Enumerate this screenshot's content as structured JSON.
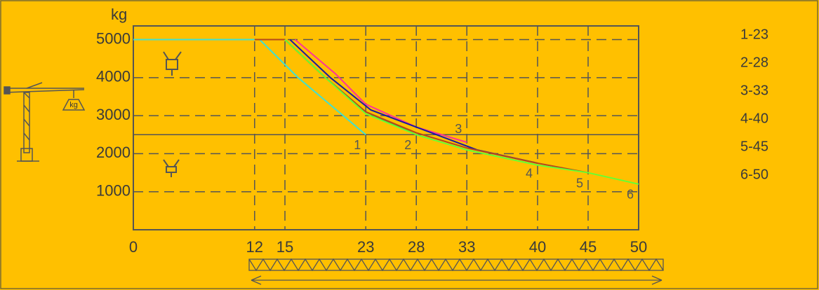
{
  "chart_data": {
    "type": "line",
    "y_label": "kg",
    "icon_text": "kg",
    "xlim": [
      0,
      50
    ],
    "xticks": [
      0,
      12,
      15,
      23,
      28,
      33,
      40,
      45,
      50
    ],
    "ylim": [
      0,
      5360
    ],
    "yticks": [
      1000,
      2000,
      3000,
      4000,
      5000
    ],
    "grid": true,
    "reference_line": 2500,
    "series": [
      {
        "name": "1-23",
        "label": "1",
        "color": "#40e0d0",
        "x": [
          0,
          12.5,
          16.3,
          23
        ],
        "values": [
          5000,
          5000,
          4000,
          2500
        ]
      },
      {
        "name": "2-28",
        "label": "2",
        "color": "#6b8e23",
        "x": [
          15,
          19,
          23,
          28
        ],
        "values": [
          5000,
          4000,
          3100,
          2500
        ]
      },
      {
        "name": "3-33",
        "label": "3",
        "color": "#ff3399",
        "x": [
          16,
          20,
          23,
          28,
          33
        ],
        "values": [
          5000,
          4100,
          3300,
          2700,
          2300
        ]
      },
      {
        "name": "4-40",
        "label": "4",
        "color": "#1a1aa0",
        "x": [
          15.5,
          19.5,
          23.5,
          28,
          34,
          40
        ],
        "values": [
          5000,
          4000,
          3150,
          2700,
          2100,
          1750
        ]
      },
      {
        "name": "5-45",
        "label": "5",
        "color": "#b5481c",
        "x": [
          12,
          15,
          19,
          23,
          28,
          33,
          40,
          45
        ],
        "values": [
          5000,
          5000,
          4000,
          3100,
          2550,
          2150,
          1750,
          1500
        ]
      },
      {
        "name": "6-50",
        "label": "6",
        "color": "#66ff33",
        "x": [
          15,
          19,
          23,
          28,
          33,
          40,
          45,
          50
        ],
        "values": [
          5000,
          4000,
          3050,
          2500,
          2100,
          1700,
          1500,
          1200
        ]
      }
    ]
  }
}
